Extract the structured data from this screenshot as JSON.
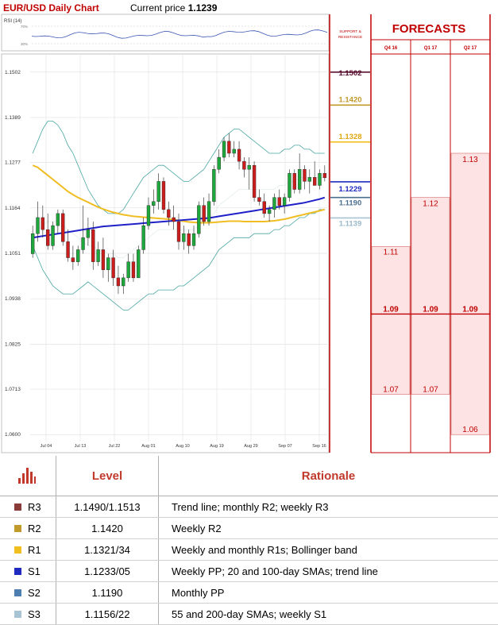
{
  "header": {
    "title": "EUR/USD Daily Chart",
    "price_label": "Current price",
    "price_value": "1.1239"
  },
  "rsi": {
    "label": "RSI (14)",
    "levels": [
      "70%",
      "30%"
    ],
    "line_color": "#3a55b4"
  },
  "chart_data": {
    "type": "candlestick",
    "y_ticks": [
      "1.1502",
      "1.1389",
      "1.1277",
      "1.1164",
      "1.1051",
      "1.0938",
      "1.0825",
      "1.0713",
      "1.0600"
    ],
    "ylim": [
      1.0555,
      1.1547
    ],
    "x_ticks": [
      "Jul 04",
      "Jul 13",
      "Jul 22",
      "Aug 01",
      "Aug 10",
      "Aug 19",
      "Aug 29",
      "Sep 07",
      "Sep 16"
    ],
    "candles": [
      {
        "o": 1.105,
        "h": 1.112,
        "l": 1.104,
        "c": 1.11
      },
      {
        "o": 1.11,
        "h": 1.118,
        "l": 1.108,
        "c": 1.114
      },
      {
        "o": 1.114,
        "h": 1.117,
        "l": 1.109,
        "c": 1.111
      },
      {
        "o": 1.111,
        "h": 1.115,
        "l": 1.106,
        "c": 1.107
      },
      {
        "o": 1.107,
        "h": 1.113,
        "l": 1.106,
        "c": 1.112
      },
      {
        "o": 1.112,
        "h": 1.116,
        "l": 1.11,
        "c": 1.115
      },
      {
        "o": 1.115,
        "h": 1.116,
        "l": 1.107,
        "c": 1.108
      },
      {
        "o": 1.108,
        "h": 1.111,
        "l": 1.103,
        "c": 1.104
      },
      {
        "o": 1.104,
        "h": 1.107,
        "l": 1.101,
        "c": 1.103
      },
      {
        "o": 1.103,
        "h": 1.107,
        "l": 1.102,
        "c": 1.106
      },
      {
        "o": 1.106,
        "h": 1.117,
        "l": 1.105,
        "c": 1.109
      },
      {
        "o": 1.109,
        "h": 1.114,
        "l": 1.107,
        "c": 1.111
      },
      {
        "o": 1.111,
        "h": 1.113,
        "l": 1.101,
        "c": 1.103
      },
      {
        "o": 1.103,
        "h": 1.108,
        "l": 1.102,
        "c": 1.106
      },
      {
        "o": 1.106,
        "h": 1.109,
        "l": 1.099,
        "c": 1.101
      },
      {
        "o": 1.101,
        "h": 1.105,
        "l": 1.098,
        "c": 1.104
      },
      {
        "o": 1.104,
        "h": 1.106,
        "l": 1.097,
        "c": 1.099
      },
      {
        "o": 1.099,
        "h": 1.102,
        "l": 1.095,
        "c": 1.097
      },
      {
        "o": 1.097,
        "h": 1.1,
        "l": 1.095,
        "c": 1.099
      },
      {
        "o": 1.099,
        "h": 1.105,
        "l": 1.098,
        "c": 1.103
      },
      {
        "o": 1.103,
        "h": 1.105,
        "l": 1.098,
        "c": 1.099
      },
      {
        "o": 1.099,
        "h": 1.107,
        "l": 1.099,
        "c": 1.106
      },
      {
        "o": 1.106,
        "h": 1.114,
        "l": 1.105,
        "c": 1.112
      },
      {
        "o": 1.112,
        "h": 1.119,
        "l": 1.111,
        "c": 1.117
      },
      {
        "o": 1.117,
        "h": 1.121,
        "l": 1.115,
        "c": 1.118
      },
      {
        "o": 1.118,
        "h": 1.125,
        "l": 1.116,
        "c": 1.123
      },
      {
        "o": 1.123,
        "h": 1.124,
        "l": 1.115,
        "c": 1.116
      },
      {
        "o": 1.116,
        "h": 1.118,
        "l": 1.112,
        "c": 1.114
      },
      {
        "o": 1.114,
        "h": 1.117,
        "l": 1.111,
        "c": 1.113
      },
      {
        "o": 1.113,
        "h": 1.115,
        "l": 1.106,
        "c": 1.108
      },
      {
        "o": 1.108,
        "h": 1.112,
        "l": 1.106,
        "c": 1.11
      },
      {
        "o": 1.11,
        "h": 1.111,
        "l": 1.105,
        "c": 1.107
      },
      {
        "o": 1.107,
        "h": 1.112,
        "l": 1.106,
        "c": 1.11
      },
      {
        "o": 1.11,
        "h": 1.118,
        "l": 1.109,
        "c": 1.117
      },
      {
        "o": 1.117,
        "h": 1.119,
        "l": 1.112,
        "c": 1.113
      },
      {
        "o": 1.113,
        "h": 1.12,
        "l": 1.112,
        "c": 1.118
      },
      {
        "o": 1.118,
        "h": 1.127,
        "l": 1.117,
        "c": 1.126
      },
      {
        "o": 1.126,
        "h": 1.131,
        "l": 1.125,
        "c": 1.129
      },
      {
        "o": 1.129,
        "h": 1.134,
        "l": 1.128,
        "c": 1.133
      },
      {
        "o": 1.133,
        "h": 1.135,
        "l": 1.129,
        "c": 1.13
      },
      {
        "o": 1.13,
        "h": 1.133,
        "l": 1.129,
        "c": 1.131
      },
      {
        "o": 1.131,
        "h": 1.133,
        "l": 1.126,
        "c": 1.128
      },
      {
        "o": 1.128,
        "h": 1.129,
        "l": 1.124,
        "c": 1.126
      },
      {
        "o": 1.126,
        "h": 1.129,
        "l": 1.121,
        "c": 1.127
      },
      {
        "o": 1.127,
        "h": 1.128,
        "l": 1.118,
        "c": 1.119
      },
      {
        "o": 1.119,
        "h": 1.121,
        "l": 1.117,
        "c": 1.118
      },
      {
        "o": 1.118,
        "h": 1.12,
        "l": 1.114,
        "c": 1.115
      },
      {
        "o": 1.115,
        "h": 1.117,
        "l": 1.113,
        "c": 1.116
      },
      {
        "o": 1.116,
        "h": 1.12,
        "l": 1.114,
        "c": 1.119
      },
      {
        "o": 1.119,
        "h": 1.121,
        "l": 1.116,
        "c": 1.117
      },
      {
        "o": 1.117,
        "h": 1.12,
        "l": 1.115,
        "c": 1.119
      },
      {
        "o": 1.119,
        "h": 1.126,
        "l": 1.118,
        "c": 1.125
      },
      {
        "o": 1.125,
        "h": 1.126,
        "l": 1.12,
        "c": 1.121
      },
      {
        "o": 1.121,
        "h": 1.13,
        "l": 1.12,
        "c": 1.126
      },
      {
        "o": 1.126,
        "h": 1.127,
        "l": 1.121,
        "c": 1.123
      },
      {
        "o": 1.123,
        "h": 1.126,
        "l": 1.12,
        "c": 1.124
      },
      {
        "o": 1.124,
        "h": 1.128,
        "l": 1.122,
        "c": 1.122
      },
      {
        "o": 1.122,
        "h": 1.126,
        "l": 1.121,
        "c": 1.125
      },
      {
        "o": 1.125,
        "h": 1.127,
        "l": 1.123,
        "c": 1.1239
      }
    ],
    "overlays": [
      {
        "name": "upper-band",
        "color": "#4aa6a3",
        "width": 0.8,
        "values": [
          1.13,
          1.133,
          1.136,
          1.138,
          1.138,
          1.137,
          1.135,
          1.132,
          1.13,
          1.127,
          1.124,
          1.121,
          1.119,
          1.117,
          1.116,
          1.115,
          1.115,
          1.115,
          1.116,
          1.118,
          1.12,
          1.122,
          1.124,
          1.125,
          1.126,
          1.127,
          1.127,
          1.126,
          1.125,
          1.124,
          1.123,
          1.123,
          1.124,
          1.125,
          1.126,
          1.128,
          1.13,
          1.132,
          1.134,
          1.135,
          1.136,
          1.136,
          1.135,
          1.134,
          1.133,
          1.132,
          1.131,
          1.13,
          1.13,
          1.13,
          1.131,
          1.131,
          1.132,
          1.132,
          1.131,
          1.131,
          1.13,
          1.13,
          1.13
        ]
      },
      {
        "name": "lower-band",
        "color": "#4aa6a3",
        "width": 0.8,
        "values": [
          1.107,
          1.104,
          1.101,
          1.099,
          1.097,
          1.096,
          1.095,
          1.095,
          1.095,
          1.096,
          1.097,
          1.098,
          1.097,
          1.096,
          1.095,
          1.094,
          1.093,
          1.092,
          1.091,
          1.091,
          1.092,
          1.093,
          1.094,
          1.095,
          1.095,
          1.096,
          1.096,
          1.096,
          1.096,
          1.097,
          1.097,
          1.098,
          1.099,
          1.1,
          1.101,
          1.102,
          1.104,
          1.106,
          1.107,
          1.108,
          1.109,
          1.109,
          1.109,
          1.109,
          1.11,
          1.11,
          1.11,
          1.11,
          1.111,
          1.111,
          1.112,
          1.112,
          1.113,
          1.114,
          1.114,
          1.115,
          1.115,
          1.116,
          1.116
        ]
      },
      {
        "name": "faint-band",
        "color": "#e3ecec",
        "width": 0.8,
        "values": [
          1.11,
          1.111,
          1.112,
          1.113,
          1.113,
          1.113,
          1.112,
          1.111,
          1.11,
          1.109,
          1.108,
          1.107,
          1.107,
          1.106,
          1.106,
          1.105,
          1.105,
          1.104,
          1.104,
          1.105,
          1.106,
          1.107,
          1.108,
          1.109,
          1.11,
          1.111,
          1.111,
          1.111,
          1.111,
          1.111,
          1.111,
          1.111,
          1.111,
          1.112,
          1.113,
          1.114,
          1.115,
          1.117,
          1.118,
          1.119,
          1.12,
          1.121,
          1.121,
          1.121,
          1.121,
          1.121,
          1.121,
          1.121,
          1.121,
          1.122,
          1.122,
          1.123,
          1.123,
          1.124,
          1.124,
          1.124,
          1.124,
          1.124,
          1.124
        ]
      },
      {
        "name": "yellow-sma",
        "color": "#f0bd23",
        "width": 2,
        "values": [
          1.127,
          1.1265,
          1.1255,
          1.1245,
          1.1235,
          1.1225,
          1.1215,
          1.1205,
          1.1197,
          1.119,
          1.1184,
          1.1178,
          1.1172,
          1.1166,
          1.1161,
          1.1157,
          1.1153,
          1.115,
          1.1147,
          1.1145,
          1.1143,
          1.1142,
          1.1141,
          1.114,
          1.1139,
          1.1138,
          1.1137,
          1.1136,
          1.1135,
          1.1133,
          1.1131,
          1.1129,
          1.1128,
          1.1127,
          1.1127,
          1.1127,
          1.1128,
          1.1129,
          1.113,
          1.1131,
          1.1131,
          1.1131,
          1.113,
          1.113,
          1.113,
          1.113,
          1.113,
          1.1131,
          1.1132,
          1.1134,
          1.1136,
          1.1139,
          1.1142,
          1.1145,
          1.1148,
          1.1151,
          1.1154,
          1.1157,
          1.116
        ]
      },
      {
        "name": "blue-sma",
        "color": "#2020c8",
        "width": 2,
        "values": [
          1.109,
          1.1092,
          1.1094,
          1.1096,
          1.1098,
          1.11,
          1.1102,
          1.1104,
          1.1106,
          1.1108,
          1.111,
          1.1112,
          1.1114,
          1.1116,
          1.1118,
          1.1119,
          1.112,
          1.1121,
          1.1122,
          1.1123,
          1.1124,
          1.1125,
          1.1126,
          1.1127,
          1.1128,
          1.1129,
          1.113,
          1.1131,
          1.1132,
          1.1133,
          1.1134,
          1.1135,
          1.1136,
          1.1137,
          1.1138,
          1.1139,
          1.1141,
          1.1143,
          1.1145,
          1.1147,
          1.1149,
          1.1151,
          1.1153,
          1.1155,
          1.1157,
          1.1159,
          1.1161,
          1.1163,
          1.1165,
          1.1167,
          1.1169,
          1.1171,
          1.1173,
          1.1175,
          1.1177,
          1.118,
          1.1183,
          1.1186,
          1.119
        ]
      }
    ],
    "sr_header": "SUPPORT & RESISTANCE",
    "sr_levels": [
      {
        "label": "1.1502",
        "value": 1.1502,
        "color": "#5a1030",
        "text_color": "#5a1030"
      },
      {
        "label": "1.1420",
        "value": 1.142,
        "color": "#c09a2a",
        "text_color": "#c09a2a"
      },
      {
        "label": "1.1328",
        "value": 1.1328,
        "color": "#f0c020",
        "text_color": "#e0a810"
      },
      {
        "label": "1.1229",
        "value": 1.1229,
        "color": "#1f2bbf",
        "text_color": "#1f2bbf"
      },
      {
        "label": "1.1190",
        "value": 1.119,
        "color": "#4d6f8f",
        "text_color": "#4d6f8f"
      },
      {
        "label": "1.1139",
        "value": 1.1139,
        "color": "#a8c4d4",
        "text_color": "#9ab8c8"
      }
    ],
    "forecasts": {
      "title": "FORECASTS",
      "columns": [
        "Q4 16",
        "Q1 17",
        "Q2 17"
      ],
      "bands": [
        {
          "col": 0,
          "top": 1.107,
          "bottom": 1.07,
          "labels": [
            {
              "text": "1.11",
              "value": 1.107
            },
            {
              "text": "1.09",
              "value": 1.09,
              "bold": true
            },
            {
              "text": "1.07",
              "value": 1.07
            }
          ]
        },
        {
          "col": 1,
          "top": 1.119,
          "bottom": 1.07,
          "labels": [
            {
              "text": "1.12",
              "value": 1.119
            },
            {
              "text": "1.09",
              "value": 1.09,
              "bold": true
            },
            {
              "text": "1.07",
              "value": 1.07
            }
          ]
        },
        {
          "col": 2,
          "top": 1.13,
          "bottom": 1.06,
          "labels": [
            {
              "text": "1.13",
              "value": 1.13
            },
            {
              "text": "1.09",
              "value": 1.09,
              "bold": true
            },
            {
              "text": "1.06",
              "value": 1.06
            }
          ]
        }
      ],
      "median_value": 1.09
    }
  },
  "levels_table": {
    "headers": {
      "level": "Level",
      "rationale": "Rationale"
    },
    "rows": [
      {
        "name": "R3",
        "color": "#8b3a3a",
        "level": "1.1490/1.1513",
        "rationale": "Trend line; monthly R2; weekly R3"
      },
      {
        "name": "R2",
        "color": "#c09a2a",
        "level": "1.1420",
        "rationale": "Weekly R2"
      },
      {
        "name": "R1",
        "color": "#f0c020",
        "level": "1.1321/34",
        "rationale": "Weekly and monthly R1s; Bollinger band"
      },
      {
        "name": "S1",
        "color": "#1f2bbf",
        "level": "1.1233/05",
        "rationale": "Weekly PP; 20 and 100-day SMAs; trend line"
      },
      {
        "name": "S2",
        "color": "#4d7fb0",
        "level": "1.1190",
        "rationale": "Monthly PP"
      },
      {
        "name": "S3",
        "color": "#a8c4d4",
        "level": "1.1156/22",
        "rationale": "55 and 200-day SMAs; weekly S1"
      }
    ]
  }
}
